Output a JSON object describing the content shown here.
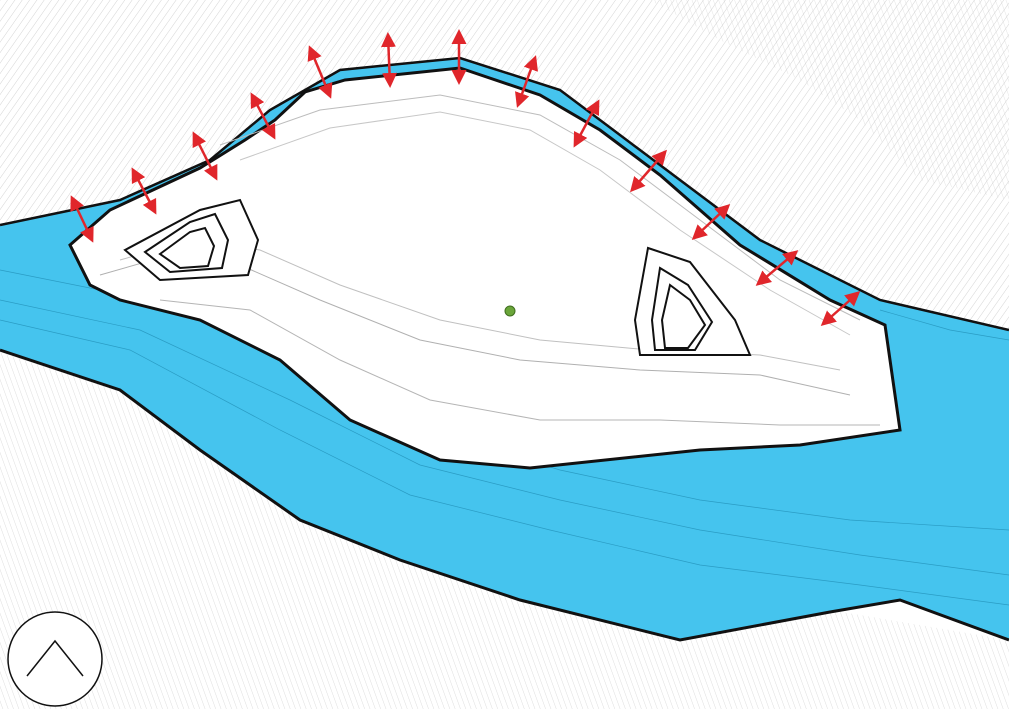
{
  "map": {
    "river_color": "#45c4ee",
    "island_fill": "#ffffff",
    "contour_color": "#8a8a8a",
    "hatch_color": "#b5b5b5",
    "outline_color": "#111111",
    "arrow_color": "#e0262b",
    "point_color": "#6aa53a",
    "north_symbol": "north-arrow-icon",
    "flow_arrow_count": 13
  }
}
